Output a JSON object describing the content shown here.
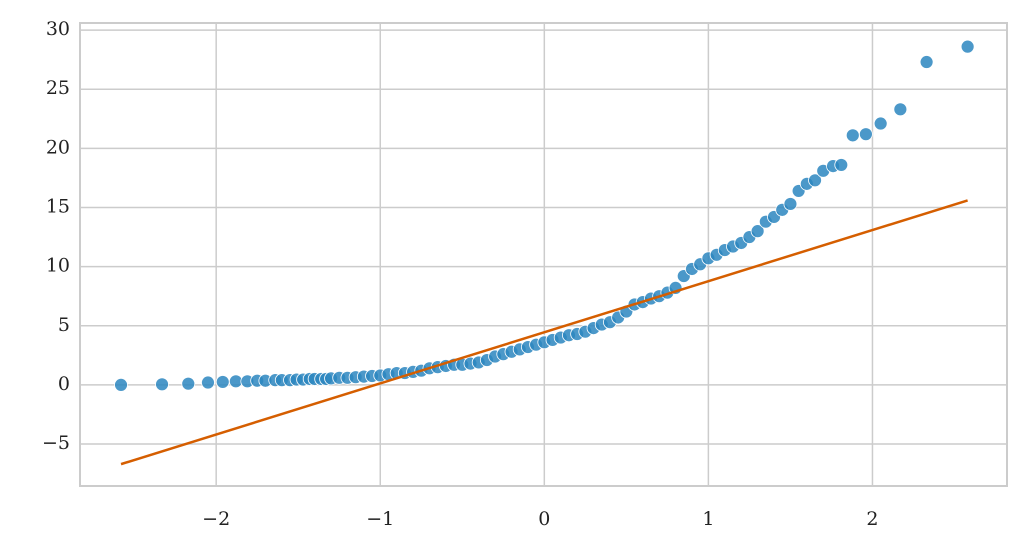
{
  "chart_data": {
    "type": "scatter",
    "xlim": [
      -2.83,
      2.82
    ],
    "ylim": [
      -8.55,
      30.6
    ],
    "xticks": [
      {
        "value": -2,
        "label": "−2"
      },
      {
        "value": -1,
        "label": "−1"
      },
      0,
      1,
      2
    ],
    "yticks": [
      {
        "value": -5,
        "label": "−5"
      },
      0,
      5,
      10,
      15,
      20,
      25,
      30
    ],
    "grid": true,
    "series": [
      {
        "color": "#2b86c0",
        "x": [
          -2.58,
          -2.33,
          -2.17,
          -2.05,
          -1.96,
          -1.88,
          -1.81,
          -1.75,
          -1.7,
          -1.64,
          -1.6,
          -1.55,
          -1.51,
          -1.47,
          -1.43,
          -1.4,
          -1.36,
          -1.33,
          -1.3,
          -1.25,
          -1.2,
          -1.15,
          -1.1,
          -1.05,
          -1.0,
          -0.95,
          -0.9,
          -0.85,
          -0.8,
          -0.75,
          -0.7,
          -0.65,
          -0.6,
          -0.55,
          -0.5,
          -0.45,
          -0.4,
          -0.35,
          -0.3,
          -0.25,
          -0.2,
          -0.15,
          -0.1,
          -0.05,
          0.0,
          0.05,
          0.1,
          0.15,
          0.2,
          0.25,
          0.3,
          0.35,
          0.4,
          0.45,
          0.5,
          0.55,
          0.6,
          0.65,
          0.7,
          0.75,
          0.8,
          0.85,
          0.9,
          0.95,
          1.0,
          1.05,
          1.1,
          1.15,
          1.2,
          1.25,
          1.3,
          1.35,
          1.4,
          1.45,
          1.5,
          1.55,
          1.6,
          1.65,
          1.7,
          1.76,
          1.81,
          1.88,
          1.96,
          2.05,
          2.17,
          2.33,
          2.58
        ],
        "values": [
          0.0,
          0.05,
          0.1,
          0.2,
          0.25,
          0.3,
          0.3,
          0.35,
          0.35,
          0.4,
          0.4,
          0.4,
          0.45,
          0.45,
          0.5,
          0.5,
          0.5,
          0.5,
          0.55,
          0.6,
          0.6,
          0.65,
          0.7,
          0.75,
          0.8,
          0.9,
          1.0,
          1.0,
          1.1,
          1.2,
          1.4,
          1.5,
          1.6,
          1.7,
          1.7,
          1.8,
          1.9,
          2.1,
          2.4,
          2.6,
          2.8,
          3.0,
          3.2,
          3.4,
          3.6,
          3.8,
          4.0,
          4.2,
          4.3,
          4.5,
          4.8,
          5.1,
          5.3,
          5.7,
          6.2,
          6.8,
          7.0,
          7.3,
          7.5,
          7.8,
          8.2,
          9.2,
          9.8,
          10.2,
          10.7,
          11.0,
          11.4,
          11.7,
          12.0,
          12.5,
          13.0,
          13.8,
          14.2,
          14.8,
          15.3,
          16.4,
          17.0,
          17.3,
          18.1,
          18.5,
          18.6,
          21.1,
          21.2,
          22.1,
          23.3,
          27.3,
          28.6
        ]
      }
    ],
    "fit_line": {
      "color": "#d55e00",
      "x": [
        -2.58,
        2.58
      ],
      "values": [
        -6.7,
        15.6
      ]
    }
  }
}
